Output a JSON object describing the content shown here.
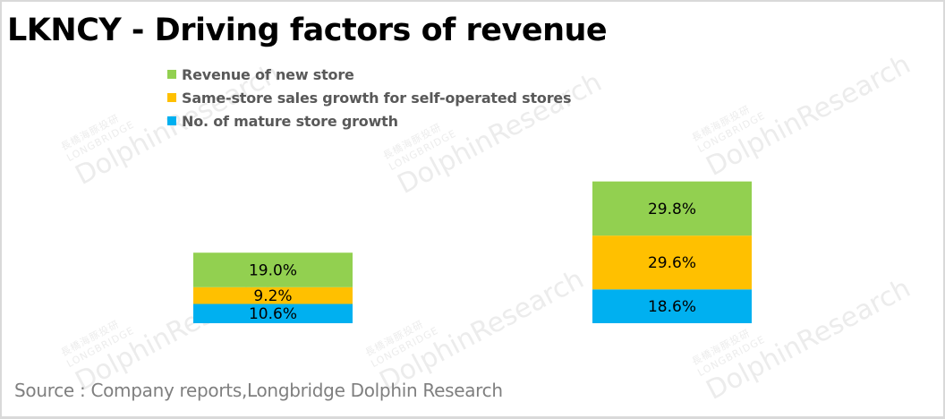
{
  "title": "LKNCY - Driving factors of revenue",
  "source": "Source : Company reports,Longbridge Dolphin Research",
  "watermark": {
    "cn": "長橋海豚投研",
    "en_small": "LONGBRIDGE",
    "en_big": "DolphinResearch"
  },
  "legend": [
    {
      "label": "Revenue of new store",
      "color": "#92d050"
    },
    {
      "label": "Same-store sales growth for self-operated stores",
      "color": "#ffc000"
    },
    {
      "label": "No. of mature store growth",
      "color": "#00b0f0"
    }
  ],
  "chart_data": {
    "type": "bar",
    "stacked": true,
    "title": "LKNCY - Driving factors of revenue",
    "xlabel": "",
    "ylabel": "",
    "categories": [
      "",
      ""
    ],
    "series": [
      {
        "name": "No. of mature store growth",
        "color": "#00b0f0",
        "values": [
          10.6,
          18.6
        ],
        "labels": [
          "10.6%",
          "18.6%"
        ]
      },
      {
        "name": "Same-store sales growth for self-operated stores",
        "color": "#ffc000",
        "values": [
          9.2,
          29.6
        ],
        "labels": [
          "9.2%",
          "29.6%"
        ]
      },
      {
        "name": "Revenue of new store",
        "color": "#92d050",
        "values": [
          19.0,
          29.8
        ],
        "labels": [
          "19.0%",
          "29.8%"
        ]
      }
    ],
    "grid": false,
    "legend_position": "top-left",
    "axes_visible": false
  }
}
